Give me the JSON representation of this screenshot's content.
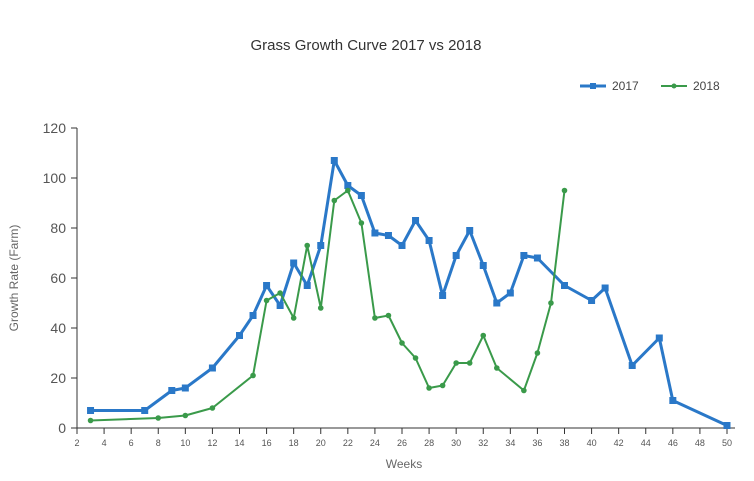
{
  "chart_data": {
    "type": "line",
    "title": "Grass Growth Curve 2017 vs 2018",
    "xlabel": "Weeks",
    "ylabel": "Growth Rate (Farm)",
    "xlim": [
      2,
      50
    ],
    "ylim": [
      0,
      120
    ],
    "x_ticks": [
      2,
      4,
      6,
      8,
      10,
      12,
      14,
      16,
      18,
      20,
      22,
      24,
      26,
      28,
      30,
      32,
      34,
      36,
      38,
      40,
      42,
      44,
      46,
      48,
      50
    ],
    "y_ticks": [
      0,
      20,
      40,
      60,
      80,
      100,
      120
    ],
    "grid": false,
    "legend_position": "top-right",
    "series": [
      {
        "name": "2017",
        "color": "#2a78c8",
        "marker": "square",
        "points": [
          [
            3,
            7
          ],
          [
            7,
            7
          ],
          [
            9,
            15
          ],
          [
            10,
            16
          ],
          [
            12,
            24
          ],
          [
            14,
            37
          ],
          [
            15,
            45
          ],
          [
            16,
            57
          ],
          [
            17,
            49
          ],
          [
            18,
            66
          ],
          [
            19,
            57
          ],
          [
            20,
            73
          ],
          [
            21,
            107
          ],
          [
            22,
            97
          ],
          [
            23,
            93
          ],
          [
            24,
            78
          ],
          [
            25,
            77
          ],
          [
            26,
            73
          ],
          [
            27,
            83
          ],
          [
            28,
            75
          ],
          [
            29,
            53
          ],
          [
            30,
            69
          ],
          [
            31,
            79
          ],
          [
            32,
            65
          ],
          [
            33,
            50
          ],
          [
            34,
            54
          ],
          [
            35,
            69
          ],
          [
            36,
            68
          ],
          [
            38,
            57
          ],
          [
            40,
            51
          ],
          [
            41,
            56
          ],
          [
            43,
            25
          ],
          [
            45,
            36
          ],
          [
            46,
            11
          ],
          [
            50,
            1
          ]
        ]
      },
      {
        "name": "2018",
        "color": "#3a9a4a",
        "marker": "circle",
        "points": [
          [
            3,
            3
          ],
          [
            8,
            4
          ],
          [
            10,
            5
          ],
          [
            12,
            8
          ],
          [
            15,
            21
          ],
          [
            16,
            51
          ],
          [
            17,
            54
          ],
          [
            18,
            44
          ],
          [
            19,
            73
          ],
          [
            20,
            48
          ],
          [
            21,
            91
          ],
          [
            22,
            95
          ],
          [
            23,
            82
          ],
          [
            24,
            44
          ],
          [
            25,
            45
          ],
          [
            26,
            34
          ],
          [
            27,
            28
          ],
          [
            28,
            16
          ],
          [
            29,
            17
          ],
          [
            30,
            26
          ],
          [
            31,
            26
          ],
          [
            32,
            37
          ],
          [
            33,
            24
          ],
          [
            35,
            15
          ],
          [
            36,
            30
          ],
          [
            37,
            50
          ],
          [
            38,
            95
          ]
        ]
      }
    ]
  }
}
